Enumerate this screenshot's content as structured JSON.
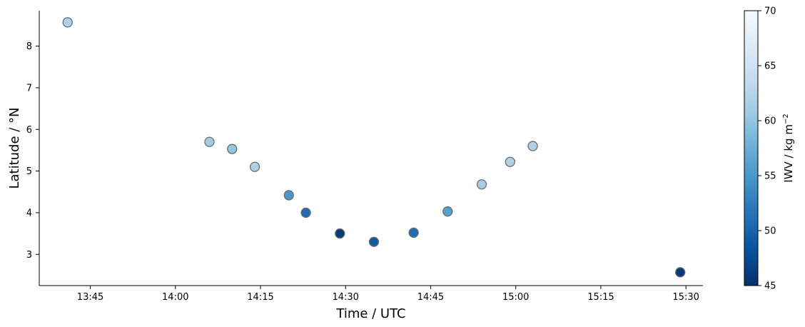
{
  "chart_data": {
    "type": "scatter",
    "xlabel": "Time / UTC",
    "ylabel": "Latitude / °N",
    "x_ticks": [
      "13:45",
      "14:00",
      "14:15",
      "14:30",
      "14:45",
      "15:00",
      "15:15",
      "15:30"
    ],
    "y_ticks": [
      3,
      4,
      5,
      6,
      7,
      8
    ],
    "xlim": [
      "13:36",
      "15:33"
    ],
    "ylim": [
      2.25,
      8.85
    ],
    "grid": false,
    "points": [
      {
        "time": "13:41",
        "lat": 8.57,
        "iwv": 62
      },
      {
        "time": "14:06",
        "lat": 5.7,
        "iwv": 61
      },
      {
        "time": "14:10",
        "lat": 5.53,
        "iwv": 60
      },
      {
        "time": "14:14",
        "lat": 5.1,
        "iwv": 62
      },
      {
        "time": "14:20",
        "lat": 4.42,
        "iwv": 55
      },
      {
        "time": "14:23",
        "lat": 4.0,
        "iwv": 51
      },
      {
        "time": "14:29",
        "lat": 3.5,
        "iwv": 46
      },
      {
        "time": "14:35",
        "lat": 3.3,
        "iwv": 49
      },
      {
        "time": "14:42",
        "lat": 3.52,
        "iwv": 51
      },
      {
        "time": "14:48",
        "lat": 4.03,
        "iwv": 56
      },
      {
        "time": "14:54",
        "lat": 4.68,
        "iwv": 61
      },
      {
        "time": "14:59",
        "lat": 5.22,
        "iwv": 62
      },
      {
        "time": "15:03",
        "lat": 5.6,
        "iwv": 62
      },
      {
        "time": "15:29",
        "lat": 2.57,
        "iwv": 46
      }
    ],
    "colorbar": {
      "label": "IWV / kg m",
      "label_superscript": "−2",
      "range": [
        45,
        70
      ],
      "ticks": [
        45,
        50,
        55,
        60,
        65,
        70
      ],
      "colormap": "Blues_r",
      "colors": [
        "#08306b",
        "#08519c",
        "#2171b5",
        "#4292c6",
        "#6baed6",
        "#9ecae1",
        "#c6dbef",
        "#deebf7",
        "#f7fbff"
      ]
    },
    "marker_edge_color": "#6b6b6b"
  }
}
